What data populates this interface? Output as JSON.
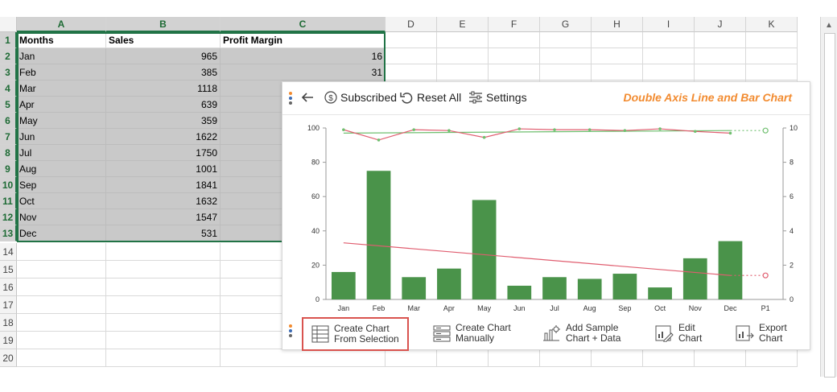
{
  "columns": [
    "A",
    "B",
    "C",
    "D",
    "E",
    "F",
    "G",
    "H",
    "I",
    "J",
    "K"
  ],
  "rows": [
    "1",
    "2",
    "3",
    "4",
    "5",
    "6",
    "7",
    "8",
    "9",
    "10",
    "11",
    "12",
    "13",
    "14",
    "15",
    "16",
    "17",
    "18",
    "19",
    "20"
  ],
  "table": {
    "headers": [
      "Months",
      "Sales",
      "Profit Margin"
    ],
    "data": [
      [
        "Jan",
        "965",
        "16"
      ],
      [
        "Feb",
        "385",
        "31"
      ],
      [
        "Mar",
        "1118",
        ""
      ],
      [
        "Apr",
        "639",
        ""
      ],
      [
        "May",
        "359",
        ""
      ],
      [
        "Jun",
        "1622",
        ""
      ],
      [
        "Jul",
        "1750",
        ""
      ],
      [
        "Aug",
        "1001",
        ""
      ],
      [
        "Sep",
        "1841",
        ""
      ],
      [
        "Oct",
        "1632",
        ""
      ],
      [
        "Nov",
        "1547",
        ""
      ],
      [
        "Dec",
        "531",
        ""
      ]
    ]
  },
  "toolbar": {
    "subscribed_label": "Subscribed",
    "reset_label": "Reset All",
    "settings_label": "Settings",
    "chart_title": "Double Axis Line and Bar Chart"
  },
  "bottom_buttons": {
    "from_selection_l1": "Create Chart",
    "from_selection_l2": "From Selection",
    "manually_l1": "Create Chart",
    "manually_l2": "Manually",
    "sample_l1": "Add Sample",
    "sample_l2": "Chart + Data",
    "edit_l1": "Edit",
    "edit_l2": "Chart",
    "export_l1": "Export",
    "export_l2": "Chart"
  },
  "colors": {
    "bar": "#4a934a",
    "line_red": "#e05d6f",
    "line_green": "#6fbf6f",
    "accent": "#f28b30",
    "excel_green": "#217346"
  },
  "chart_data": {
    "type": "bar",
    "categories": [
      "Jan",
      "Feb",
      "Mar",
      "Apr",
      "May",
      "Jun",
      "Jul",
      "Aug",
      "Sep",
      "Oct",
      "Nov",
      "Dec",
      "P1"
    ],
    "series": [
      {
        "values": [
          16,
          75,
          13,
          18,
          58,
          8,
          13,
          12,
          15,
          7,
          24,
          34,
          null
        ]
      },
      {
        "axis": "right",
        "values": [
          9.9,
          9.3,
          9.9,
          9.85,
          9.45,
          9.95,
          9.9,
          9.9,
          9.85,
          9.95,
          9.8,
          9.7,
          null
        ]
      }
    ],
    "trendlines": [
      {
        "axis": "left",
        "start": 33,
        "end": 14
      },
      {
        "axis": "right",
        "start": 9.7,
        "end": 9.85
      }
    ],
    "y_left": {
      "min": 0,
      "max": 100,
      "ticks": [
        "0",
        "20",
        "40",
        "60",
        "80",
        "100"
      ]
    },
    "y_right": {
      "min": 0,
      "max": 10,
      "ticks": [
        "0",
        "2",
        "4",
        "6",
        "8",
        "10"
      ]
    }
  }
}
